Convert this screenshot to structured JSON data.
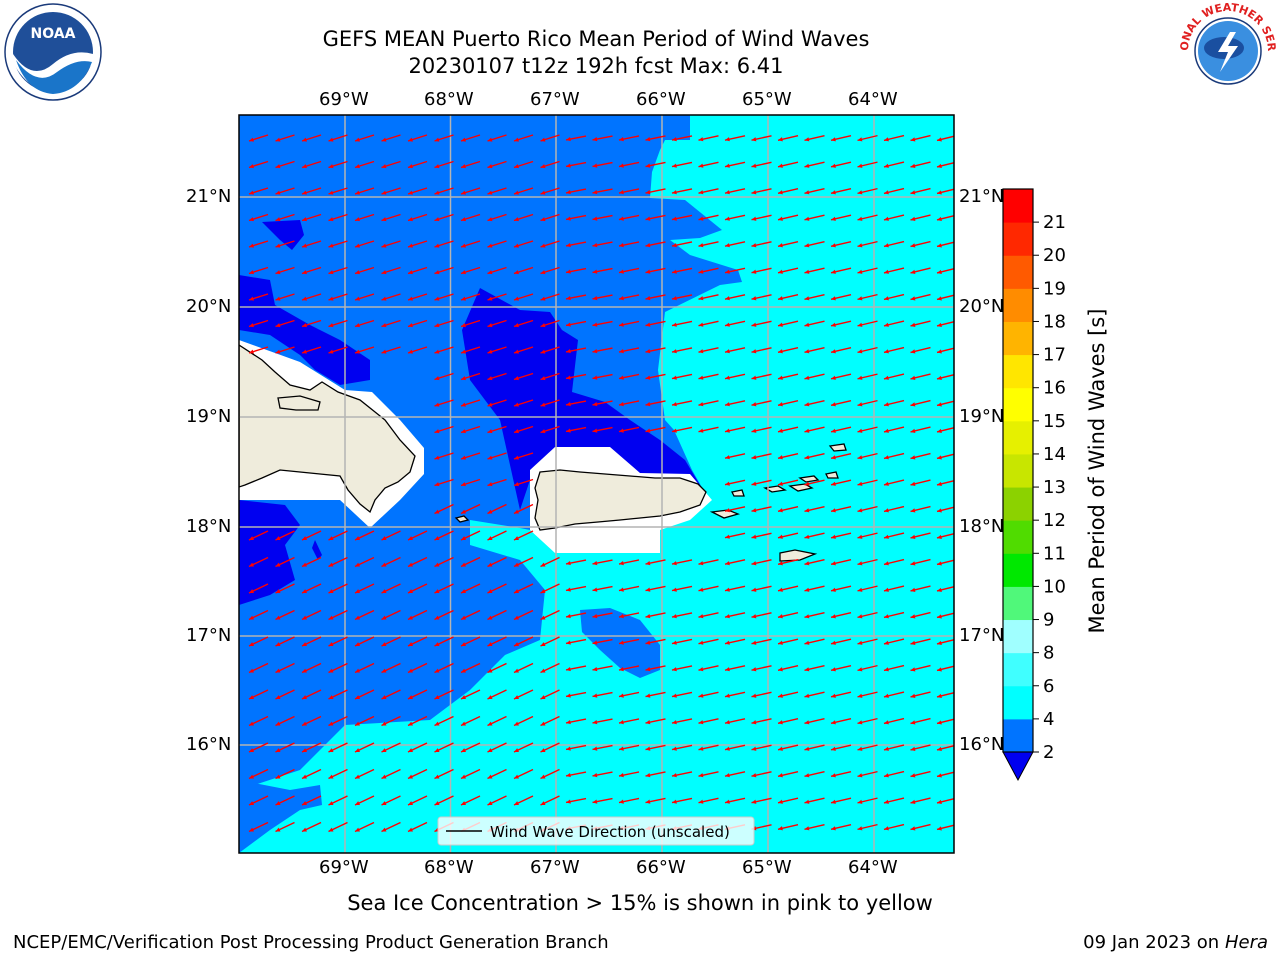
{
  "title": {
    "line1": "GEFS MEAN Puerto Rico Mean Period of Wind Waves",
    "line2": "20230107 t12z 192h fcst   Max: 6.41"
  },
  "map": {
    "lon_labels": [
      "69°W",
      "68°W",
      "67°W",
      "66°W",
      "65°W",
      "64°W"
    ],
    "lat_labels": [
      "21°N",
      "20°N",
      "19°N",
      "18°N",
      "17°N",
      "16°N"
    ],
    "legend_label": "Wind Wave Direction (unscaled)",
    "colors": {
      "band_2_4": "#0074ff",
      "band_below_2": "#0000f0",
      "band_4_6": "#00ffff",
      "land": "#efecdc",
      "arrow": "#ff0000",
      "grid": "#b4b4b4"
    }
  },
  "colorbar": {
    "label": "Mean Period of Wind Waves [s]",
    "ticks": [
      "2",
      "4",
      "6",
      "8",
      "9",
      "10",
      "11",
      "12",
      "13",
      "14",
      "15",
      "16",
      "17",
      "18",
      "19",
      "20",
      "21"
    ],
    "colors": [
      "#0074ff",
      "#00ffff",
      "#40ffff",
      "#a0ffff",
      "#50f87a",
      "#00e800",
      "#50dc00",
      "#8cd200",
      "#c8e600",
      "#e6f000",
      "#ffff00",
      "#ffe600",
      "#ffb400",
      "#ff8c00",
      "#ff5a00",
      "#ff2800",
      "#ff0000"
    ],
    "under_color": "#0000f0"
  },
  "note": "Sea Ice Concentration > 15% is shown in pink to yellow",
  "footer": {
    "left": "NCEP/EMC/Verification Post Processing Product Generation Branch",
    "right_date": "09 Jan 2023 on ",
    "right_host": "Hera"
  },
  "logos": {
    "noaa": "NOAA",
    "nws": "NATIONAL WEATHER SERVICE"
  }
}
